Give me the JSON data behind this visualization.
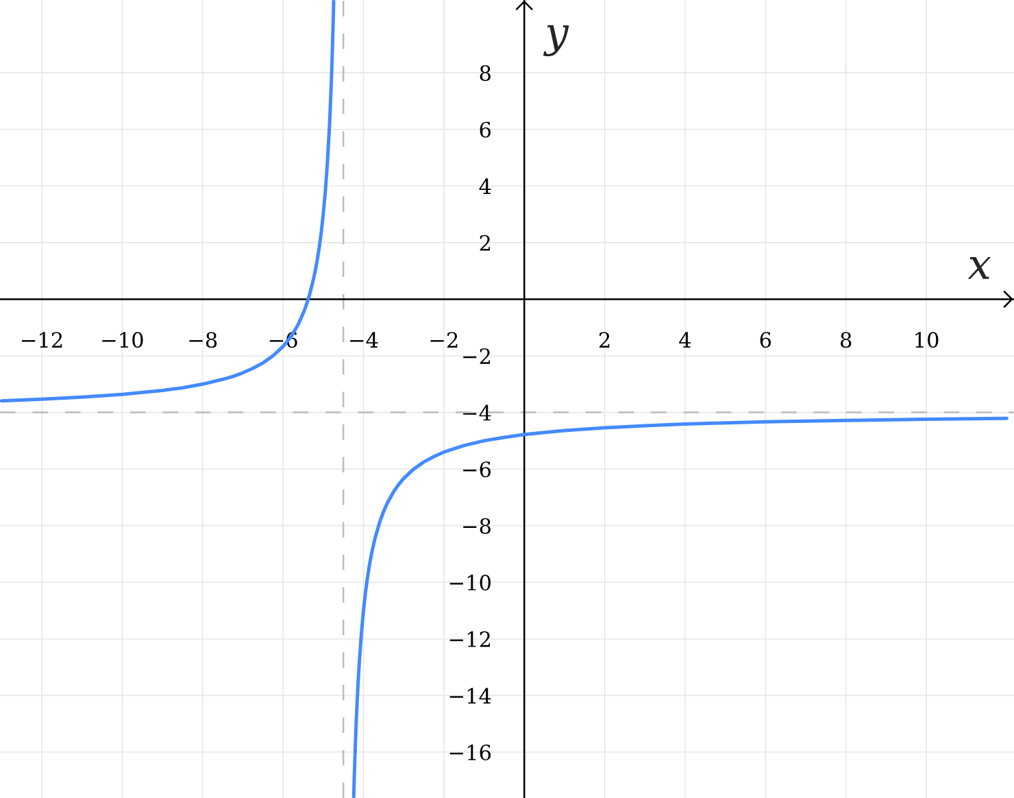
{
  "chart_data": {
    "type": "line",
    "xlabel": "x",
    "ylabel": "y",
    "xlim": [
      -13.04,
      12.18
    ],
    "ylim": [
      -17.62,
      10.57
    ],
    "xticks": [
      {
        "value": -12,
        "label": "−12"
      },
      {
        "value": -10,
        "label": "−10"
      },
      {
        "value": -8,
        "label": "−8"
      },
      {
        "value": -6,
        "label": "−6"
      },
      {
        "value": -4,
        "label": "−4"
      },
      {
        "value": -2,
        "label": "−2"
      },
      2,
      4,
      6,
      8,
      10
    ],
    "yticks": [
      {
        "value": -16,
        "label": "−16"
      },
      {
        "value": -14,
        "label": "−14"
      },
      {
        "value": -12,
        "label": "−12"
      },
      {
        "value": -10,
        "label": "−10"
      },
      {
        "value": -8,
        "label": "−8"
      },
      {
        "value": -6,
        "label": "−6"
      },
      {
        "value": -4,
        "label": "−4"
      },
      {
        "value": -2,
        "label": "−2"
      },
      2,
      4,
      6,
      8
    ],
    "grid": true,
    "series": [
      {
        "color": "#448aff",
        "x": [
          -13,
          -12,
          -11,
          -10,
          -9,
          -8.5,
          -8,
          -7.5,
          -7.25,
          -7,
          -6.75,
          -6.5,
          -6.25,
          -6,
          -5.9,
          -5.8,
          -5.75,
          -5.65,
          -5.6,
          -5.5,
          -5.45,
          -5.4,
          -5.35,
          -5.3,
          -5.25,
          -5.2,
          -5.15,
          -5.1,
          -5.05,
          -5.0,
          -4.95,
          -4.9,
          -4.85,
          -4.825,
          -4.8,
          -4.79,
          -4.77,
          -4.76,
          -4.75,
          -4.741
        ],
        "values": [
          -3.59,
          -3.53,
          -3.46,
          -3.36,
          -3.22,
          -3.13,
          -3.0,
          -2.83,
          -2.73,
          -2.6,
          -2.44,
          -2.25,
          -2.0,
          -1.67,
          -1.5,
          -1.31,
          -1.2,
          -0.96,
          -0.82,
          -0.5,
          -0.32,
          -0.11,
          0.12,
          0.38,
          0.67,
          1.0,
          1.38,
          1.83,
          2.36,
          3.0,
          3.78,
          4.75,
          6.0,
          6.77,
          7.67,
          8.07,
          8.96,
          9.46,
          10.0,
          10.52
        ]
      },
      {
        "color": "#448aff",
        "x": [
          -4.242,
          -4.23,
          -4.22,
          -4.2,
          -4.18,
          -4.15,
          -4.125,
          -4.1,
          -4.05,
          -4.0,
          -3.95,
          -3.9,
          -3.85,
          -3.8,
          -3.75,
          -3.7,
          -3.6,
          -3.5,
          -3.4,
          -3.25,
          -3.15,
          -3,
          -2.75,
          -2.5,
          -2.25,
          -2,
          -1.5,
          -1,
          -0.5,
          0,
          1,
          2,
          3,
          4,
          6,
          8,
          10,
          12
        ],
        "values": [
          -17.57,
          -16.96,
          -16.5,
          -15.67,
          -14.94,
          -14.0,
          -13.33,
          -12.75,
          -11.78,
          -11.0,
          -10.36,
          -9.83,
          -9.38,
          -9.0,
          -8.67,
          -8.38,
          -7.89,
          -7.5,
          -7.18,
          -6.8,
          -6.59,
          -6.33,
          -6.0,
          -5.75,
          -5.56,
          -5.4,
          -5.17,
          -5.0,
          -4.88,
          -4.78,
          -4.64,
          -4.54,
          -4.47,
          -4.41,
          -4.33,
          -4.28,
          -4.24,
          -4.21
        ]
      }
    ],
    "ref_lines": [
      {
        "axis": "x",
        "value": -4.5,
        "color": "#bbbbbb",
        "line_style": "dashed"
      },
      {
        "axis": "y",
        "value": -4,
        "color": "#bbbbbb",
        "line_style": "dashed"
      }
    ]
  }
}
